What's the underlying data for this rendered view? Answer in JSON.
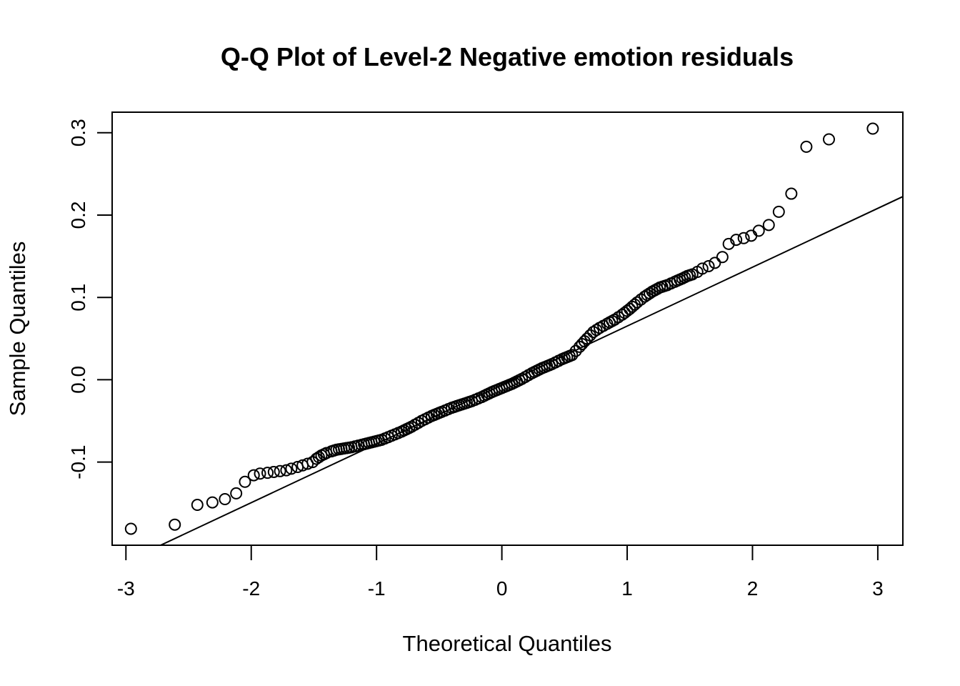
{
  "chart_data": {
    "type": "scatter",
    "title": "Q-Q Plot of Level-2 Negative emotion residuals",
    "xlabel": "Theoretical Quantiles",
    "ylabel": "Sample Quantiles",
    "xlim": [
      -3.11,
      3.2
    ],
    "ylim": [
      -0.201,
      0.325
    ],
    "x_ticks": [
      -3,
      -2,
      -1,
      0,
      1,
      2,
      3
    ],
    "x_tick_labels": [
      "-3",
      "-2",
      "-1",
      "0",
      "1",
      "2",
      "3"
    ],
    "y_ticks": [
      -0.1,
      0.0,
      0.1,
      0.2,
      0.3
    ],
    "y_tick_labels": [
      "-0.1",
      "0.0",
      "0.1",
      "0.2",
      "0.3"
    ],
    "grid": false,
    "legend": "none",
    "reference_line": {
      "slope": 0.0715,
      "intercept": -0.0063
    },
    "shape": {
      "x": [
        -2.96,
        -2.61,
        -2.43,
        -2.31,
        -2.21,
        -2.12,
        -2.05,
        -1.98,
        -1.93,
        -1.87,
        -1.82,
        -1.77,
        -1.72,
        -1.68,
        -1.63,
        -1.59,
        -1.55,
        -1.51,
        -1.48,
        -1.44,
        -1.4,
        -1.36,
        -1.32,
        -1.28,
        -1.24,
        -1.2,
        -1.12,
        -1.04,
        -0.96,
        -0.88,
        -0.8,
        -0.72,
        -0.64,
        -0.56,
        -0.48,
        -0.4,
        -0.32,
        -0.24,
        -0.16,
        -0.08,
        0.0,
        0.08,
        0.16,
        0.24,
        0.32,
        0.4,
        0.48,
        0.56,
        0.62,
        0.68,
        0.73,
        0.78,
        0.84,
        0.9,
        0.96,
        1.02,
        1.08,
        1.14,
        1.2,
        1.26,
        1.32,
        1.38,
        1.44,
        1.48,
        1.52,
        1.56,
        1.6,
        1.65,
        1.7,
        1.76,
        1.81,
        1.87,
        1.93,
        1.99,
        2.05,
        2.13,
        2.21,
        2.31,
        2.43,
        2.61,
        2.96
      ],
      "y": [
        -0.181,
        -0.176,
        -0.152,
        -0.149,
        -0.145,
        -0.138,
        -0.124,
        -0.116,
        -0.114,
        -0.113,
        -0.112,
        -0.111,
        -0.11,
        -0.108,
        -0.106,
        -0.104,
        -0.102,
        -0.1,
        -0.096,
        -0.092,
        -0.089,
        -0.087,
        -0.085,
        -0.084,
        -0.083,
        -0.082,
        -0.079,
        -0.076,
        -0.073,
        -0.068,
        -0.063,
        -0.057,
        -0.05,
        -0.044,
        -0.039,
        -0.034,
        -0.03,
        -0.026,
        -0.021,
        -0.015,
        -0.01,
        -0.005,
        0.001,
        0.008,
        0.014,
        0.019,
        0.025,
        0.03,
        0.04,
        0.05,
        0.058,
        0.063,
        0.068,
        0.073,
        0.079,
        0.086,
        0.094,
        0.101,
        0.107,
        0.112,
        0.115,
        0.119,
        0.123,
        0.126,
        0.128,
        0.131,
        0.135,
        0.138,
        0.142,
        0.149,
        0.165,
        0.17,
        0.172,
        0.175,
        0.181,
        0.188,
        0.204,
        0.226,
        0.283,
        0.292,
        0.305
      ],
      "point_count": 81
    }
  }
}
